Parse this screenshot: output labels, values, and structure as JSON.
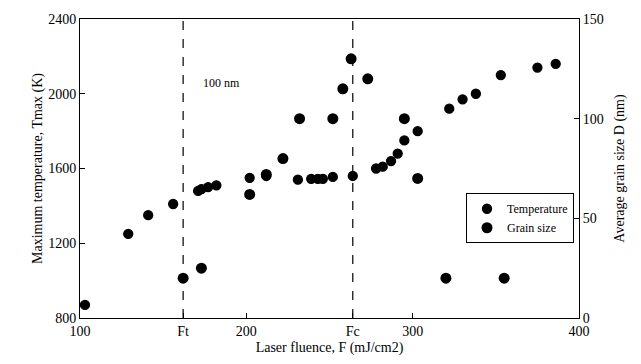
{
  "chart_data": {
    "type": "scatter",
    "x_label": "Laser fluence, F (mJ/cm2)",
    "y_label": "Maximum temperature, Tmax (K)",
    "y2_label": "Average grain size D (nm)",
    "xlim": [
      100,
      400
    ],
    "xticks": [
      100,
      {
        "value": 162,
        "label": "Ft"
      },
      200,
      {
        "value": 264,
        "label": "Fc"
      },
      300,
      400
    ],
    "ylim": [
      800,
      2400
    ],
    "yticks": [
      800,
      1200,
      1600,
      2000,
      2400
    ],
    "y2lim": [
      0,
      150
    ],
    "y2ticks": [
      0,
      50,
      100,
      150
    ],
    "grid": false,
    "legend": "lower right",
    "vlines": [
      {
        "x": 162,
        "line_style": "dashed"
      },
      {
        "x": 264,
        "line_style": "dashed"
      }
    ],
    "annotations": [
      {
        "text": "100 nm",
        "x": 185,
        "y": 2055
      }
    ],
    "series": [
      {
        "name": "Temperature",
        "color": "#000000",
        "marker": "open-square",
        "axis": "y",
        "x": [
          103,
          129,
          141,
          156,
          171,
          173,
          177,
          182,
          202,
          212,
          231,
          239,
          243,
          246,
          252,
          264,
          278,
          282,
          287,
          291,
          295,
          303,
          322,
          330,
          338,
          353,
          375,
          386
        ],
        "values": [
          870,
          1250,
          1350,
          1410,
          1480,
          1490,
          1500,
          1510,
          1550,
          1560,
          1540,
          1545,
          1545,
          1545,
          1555,
          1560,
          1600,
          1610,
          1640,
          1680,
          1750,
          1800,
          1920,
          1970,
          2000,
          2100,
          2140,
          2160
        ]
      },
      {
        "name": "Grain size",
        "color": "#000000",
        "marker": "circle",
        "axis": "y2",
        "x": [
          162,
          173,
          202,
          212,
          222,
          232,
          252,
          258,
          263,
          273,
          295,
          303,
          320,
          355
        ],
        "values": [
          20,
          25,
          62,
          72,
          80,
          100,
          100,
          115,
          130,
          120,
          100,
          70,
          20,
          20
        ]
      }
    ]
  }
}
